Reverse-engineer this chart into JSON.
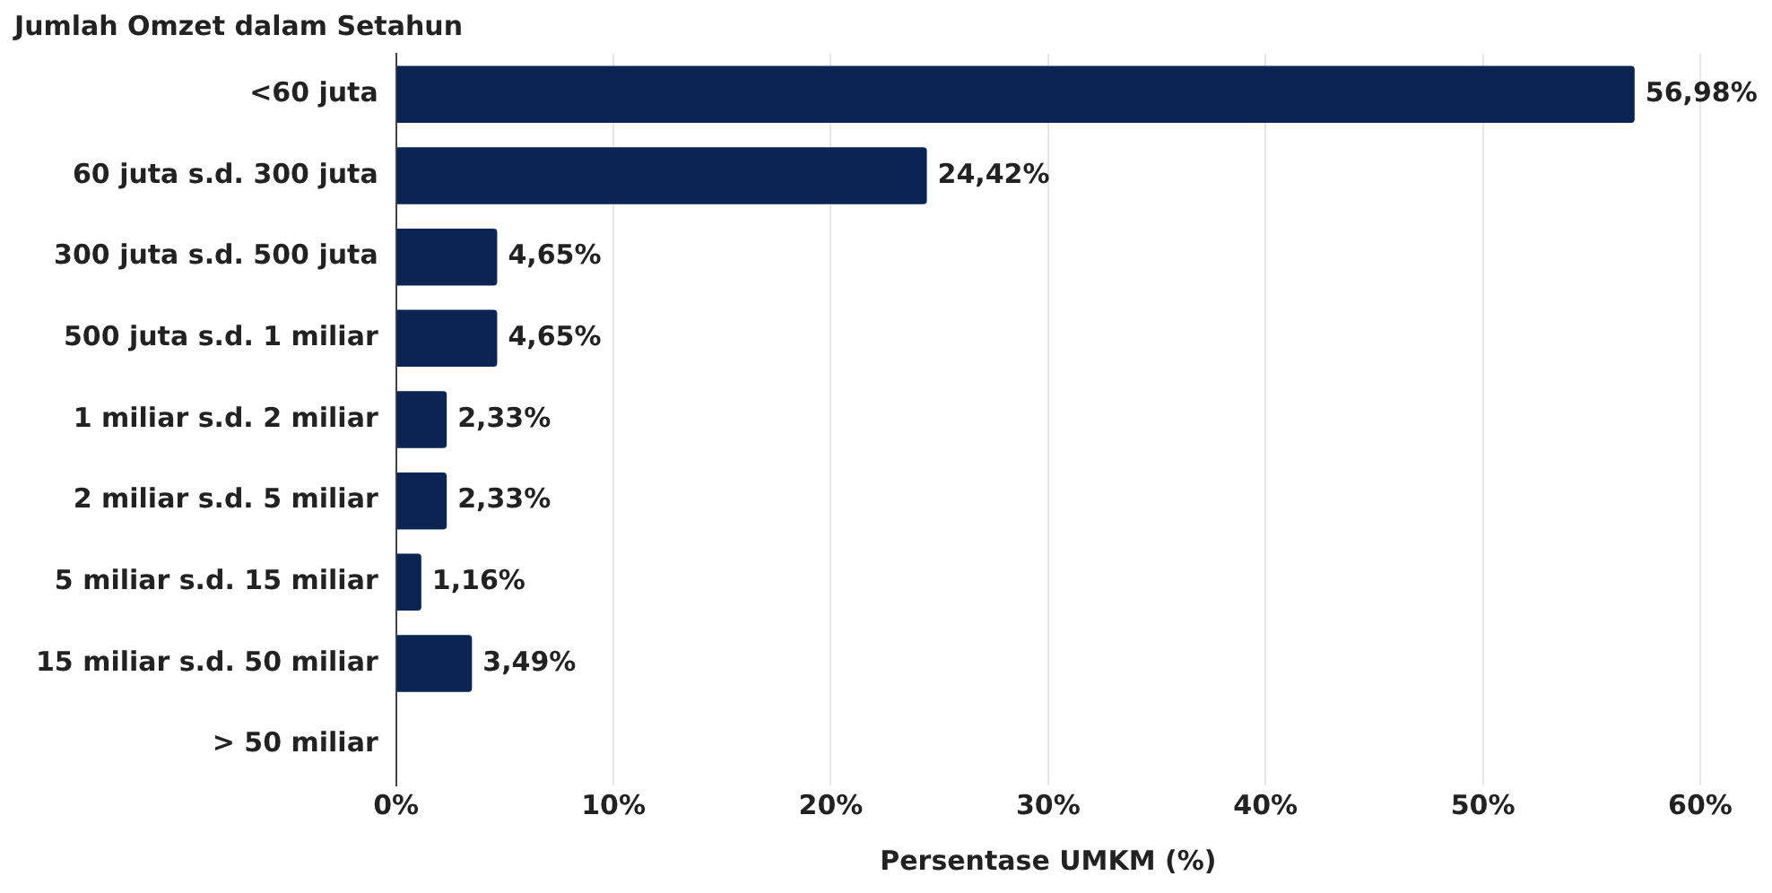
{
  "chart_data": {
    "type": "bar",
    "orientation": "horizontal",
    "ylabel": "Jumlah Omzet dalam Setahun",
    "xlabel": "Persentase UMKM (%)",
    "categories": [
      "<60 juta",
      "60 juta s.d. 300 juta",
      "300 juta s.d. 500 juta",
      "500 juta s.d. 1 miliar",
      "1 miliar s.d. 2 miliar",
      "2 miliar s.d. 5 miliar",
      "5 miliar s.d. 15 miliar",
      "15 miliar s.d. 50 miliar",
      "> 50 miliar"
    ],
    "values": [
      56.98,
      24.42,
      4.65,
      4.65,
      2.33,
      2.33,
      1.16,
      3.49,
      null
    ],
    "value_labels": [
      "56,98%",
      "24,42%",
      "4,65%",
      "4,65%",
      "2,33%",
      "2,33%",
      "1,16%",
      "3,49%",
      null
    ],
    "color": "#0b2452",
    "xlim": [
      0,
      60
    ],
    "xticks": [
      {
        "value": 0,
        "label": "0%"
      },
      {
        "value": 10,
        "label": "10%"
      },
      {
        "value": 20,
        "label": "20%"
      },
      {
        "value": 30,
        "label": "30%"
      },
      {
        "value": 40,
        "label": "40%"
      },
      {
        "value": 50,
        "label": "50%"
      },
      {
        "value": 60,
        "label": "60%"
      }
    ],
    "grid": "x",
    "legend": false
  }
}
